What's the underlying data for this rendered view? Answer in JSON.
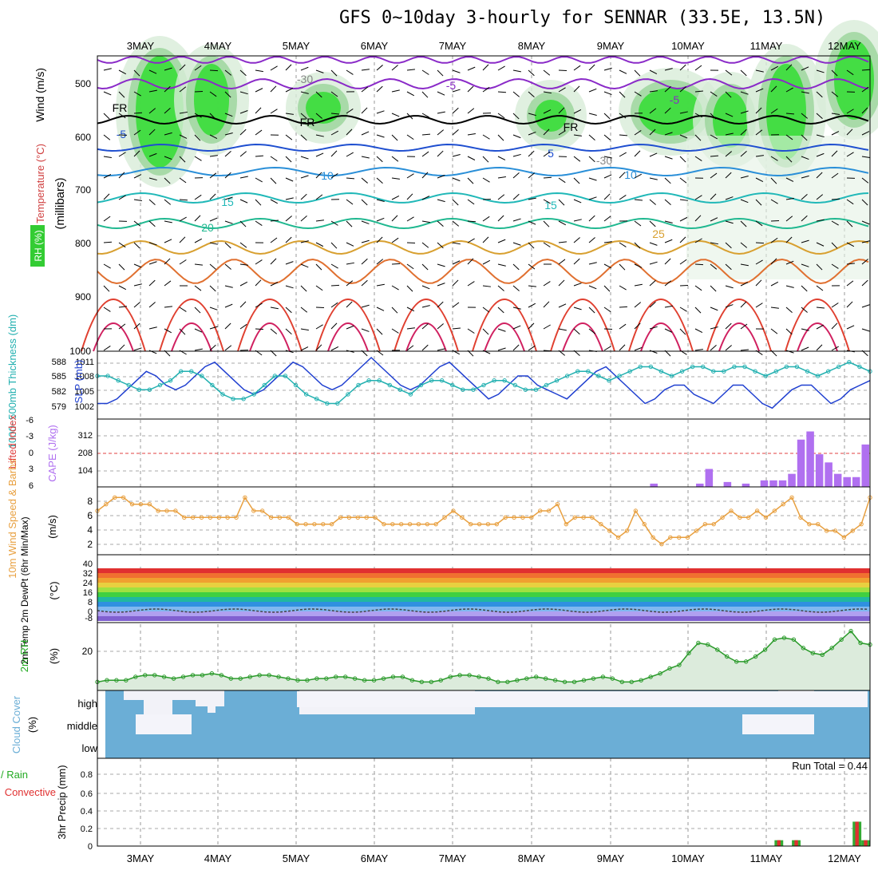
{
  "title": "GFS 0~10day 3-hourly for SENNAR (33.5E, 13.5N)",
  "colors": {
    "rh": "#22cc22",
    "temp_label": "#d04040",
    "wind_label": "#c040c0",
    "slp": "#1f3fd0",
    "thick": "#22b0b0",
    "cape": "#b070f0",
    "li": "#e04040",
    "wind10": "#e8a040",
    "cloud": "#6baed6",
    "precip_total": "#33aa33",
    "precip_conv": "#e03030"
  },
  "time_axis": {
    "labels": [
      "3MAY",
      "4MAY",
      "5MAY",
      "6MAY",
      "7MAY",
      "8MAY",
      "9MAY",
      "10MAY",
      "11MAY",
      "12MAY"
    ]
  },
  "panels": {
    "upper": {
      "ylabel1": "Wind (m/s)",
      "ylabel2": "Temperature (°C)",
      "ylabel3": "RH (%)",
      "ylabel4": "(millibars)",
      "yticks": [
        "500",
        "600",
        "700",
        "800",
        "900",
        "1000"
      ],
      "contour_labels": [
        "-5",
        "-5",
        "FR",
        "FR",
        "FR",
        "-5",
        "5",
        "10",
        "10",
        "15",
        "15",
        "20",
        "25",
        "-30",
        "-30"
      ]
    },
    "slp": {
      "ylabel_left": "1000~500mb Thickness (dm)",
      "ylabel_right": "SLP (mb)",
      "ticks_left": [
        "588",
        "585",
        "582",
        "579"
      ],
      "ticks_right": [
        "1011",
        "1008",
        "1005",
        "1002"
      ]
    },
    "cape": {
      "ylabel_left": "Lifted Index",
      "ylabel_right": "CAPE (J/kg)",
      "ticks_left": [
        "-6",
        "-3",
        "0",
        "3",
        "6"
      ],
      "ticks_right": [
        "312",
        "208",
        "104"
      ]
    },
    "wind10": {
      "ylabel": "10m Wind Speed & Barbs",
      "unit": "(m/s)",
      "ticks": [
        "8",
        "6",
        "4",
        "2"
      ]
    },
    "temp2m": {
      "ylabel": "2m Temp 2m DewPt (6hr Min/Max)",
      "unit": "(°C)",
      "ticks": [
        "40",
        "32",
        "24",
        "16",
        "8",
        "0",
        "-8"
      ]
    },
    "rh2m": {
      "ylabel": "2m RH",
      "unit": "(%)",
      "ticks": [
        "20"
      ]
    },
    "cloud": {
      "ylabel": "Cloud Cover",
      "unit": "(%)",
      "levels": [
        "high",
        "middle",
        "low"
      ]
    },
    "precip": {
      "ylabel_left1": "Total / Rain",
      "ylabel_left2": "Convective",
      "ylabel": "3hr Precip (mm)",
      "run_total": "Run Total = 0.44",
      "ticks": [
        "0.8",
        "0.6",
        "0.4",
        "0.2",
        "0"
      ]
    }
  },
  "chart_data": [
    {
      "type": "line",
      "name": "slp",
      "ylabel": "SLP (mb)",
      "ylim": [
        1000,
        1012
      ],
      "values": [
        1002,
        1002,
        1003,
        1005,
        1007,
        1009,
        1008,
        1006,
        1005,
        1006,
        1008,
        1010,
        1011,
        1009,
        1007,
        1005,
        1004,
        1005,
        1007,
        1009,
        1011,
        1010,
        1008,
        1006,
        1005,
        1006,
        1008,
        1010,
        1012,
        1010,
        1008,
        1006,
        1005,
        1006,
        1008,
        1010,
        1011,
        1009,
        1007,
        1005,
        1003,
        1004,
        1006,
        1008,
        1008,
        1006,
        1005,
        1004,
        1003,
        1005,
        1007,
        1009,
        1010,
        1008,
        1006,
        1004,
        1002,
        1003,
        1005,
        1006,
        1006,
        1004,
        1003,
        1002,
        1004,
        1006,
        1006,
        1004,
        1002,
        1001,
        1003,
        1005,
        1006,
        1006,
        1004,
        1002,
        1003,
        1005,
        1006,
        1007
      ]
    },
    {
      "type": "line",
      "name": "thickness",
      "ylabel": "1000~500mb Thickness (dm)",
      "ylim": [
        577,
        589
      ],
      "values": [
        585,
        585,
        584,
        583,
        582,
        582,
        583,
        584,
        586,
        586,
        585,
        583,
        581,
        580,
        580,
        581,
        583,
        585,
        585,
        583,
        581,
        580,
        579,
        579,
        581,
        583,
        584,
        584,
        583,
        582,
        581,
        583,
        584,
        584,
        583,
        582,
        582,
        583,
        584,
        584,
        583,
        582,
        582,
        583,
        584,
        585,
        586,
        586,
        585,
        584,
        585,
        586,
        587,
        587,
        586,
        585,
        586,
        587,
        587,
        586,
        586,
        587,
        587,
        586,
        585,
        586,
        587,
        587,
        586,
        585,
        586,
        587,
        588,
        587,
        586
      ]
    },
    {
      "type": "bar",
      "name": "cape",
      "ylabel": "CAPE (J/kg)",
      "values": [
        0,
        0,
        0,
        0,
        0,
        0,
        0,
        0,
        0,
        0,
        0,
        0,
        0,
        0,
        0,
        0,
        0,
        0,
        0,
        0,
        0,
        0,
        0,
        0,
        0,
        0,
        0,
        0,
        0,
        0,
        0,
        0,
        0,
        0,
        0,
        0,
        0,
        0,
        0,
        0,
        0,
        0,
        0,
        0,
        0,
        0,
        0,
        0,
        0,
        0,
        0,
        0,
        0,
        0,
        0,
        0,
        0,
        0,
        0,
        0,
        20,
        0,
        0,
        0,
        0,
        20,
        110,
        0,
        30,
        0,
        20,
        0,
        40,
        40,
        40,
        80,
        290,
        340,
        200,
        150,
        80,
        60,
        60,
        260
      ]
    },
    {
      "type": "line",
      "name": "wind10",
      "ylabel": "Speed (m/s)",
      "ylim": [
        0,
        9
      ],
      "values": [
        6,
        7,
        8,
        8,
        7,
        7,
        7,
        6,
        6,
        6,
        5,
        5,
        5,
        5,
        5,
        5,
        5,
        8,
        6,
        6,
        5,
        5,
        5,
        4,
        4,
        4,
        4,
        4,
        5,
        5,
        5,
        5,
        5,
        4,
        4,
        4,
        4,
        4,
        4,
        4,
        5,
        6,
        5,
        4,
        4,
        4,
        4,
        5,
        5,
        5,
        5,
        6,
        6,
        7,
        4,
        5,
        5,
        5,
        4,
        3,
        2,
        3,
        6,
        4,
        2,
        1,
        2,
        2,
        2,
        3,
        4,
        4,
        5,
        6,
        5,
        5,
        6,
        5,
        6,
        7,
        8,
        5,
        4,
        4,
        3,
        3,
        2,
        3,
        4,
        8
      ]
    },
    {
      "type": "line",
      "name": "rh2m",
      "ylabel": "2m RH (%)",
      "values": [
        5,
        6,
        6,
        6,
        8,
        9,
        9,
        8,
        7,
        8,
        9,
        9,
        10,
        9,
        7,
        7,
        8,
        9,
        9,
        8,
        7,
        6,
        6,
        7,
        7,
        8,
        8,
        7,
        6,
        6,
        7,
        8,
        8,
        6,
        5,
        5,
        6,
        8,
        9,
        9,
        8,
        7,
        5,
        5,
        6,
        7,
        8,
        7,
        6,
        5,
        5,
        6,
        7,
        8,
        7,
        5,
        5,
        6,
        8,
        10,
        13,
        15,
        22,
        28,
        27,
        24,
        20,
        17,
        17,
        20,
        24,
        30,
        31,
        30,
        25,
        22,
        21,
        25,
        30,
        35,
        28,
        27
      ]
    },
    {
      "type": "bar",
      "name": "precip",
      "ylabel": "3hr Precip (mm)",
      "values": [
        0,
        0,
        0,
        0,
        0,
        0,
        0,
        0,
        0,
        0,
        0,
        0,
        0,
        0,
        0,
        0,
        0,
        0,
        0,
        0,
        0,
        0,
        0,
        0,
        0,
        0,
        0,
        0,
        0,
        0,
        0,
        0,
        0,
        0,
        0,
        0,
        0,
        0,
        0,
        0,
        0,
        0,
        0,
        0,
        0,
        0,
        0,
        0,
        0,
        0,
        0,
        0,
        0,
        0,
        0,
        0,
        0,
        0,
        0,
        0,
        0,
        0,
        0,
        0,
        0,
        0,
        0,
        0,
        0,
        0,
        0,
        0,
        0,
        0,
        0,
        0,
        0,
        0,
        0.06,
        0,
        0.06,
        0,
        0,
        0,
        0,
        0,
        0,
        0.25,
        0.06
      ]
    }
  ]
}
